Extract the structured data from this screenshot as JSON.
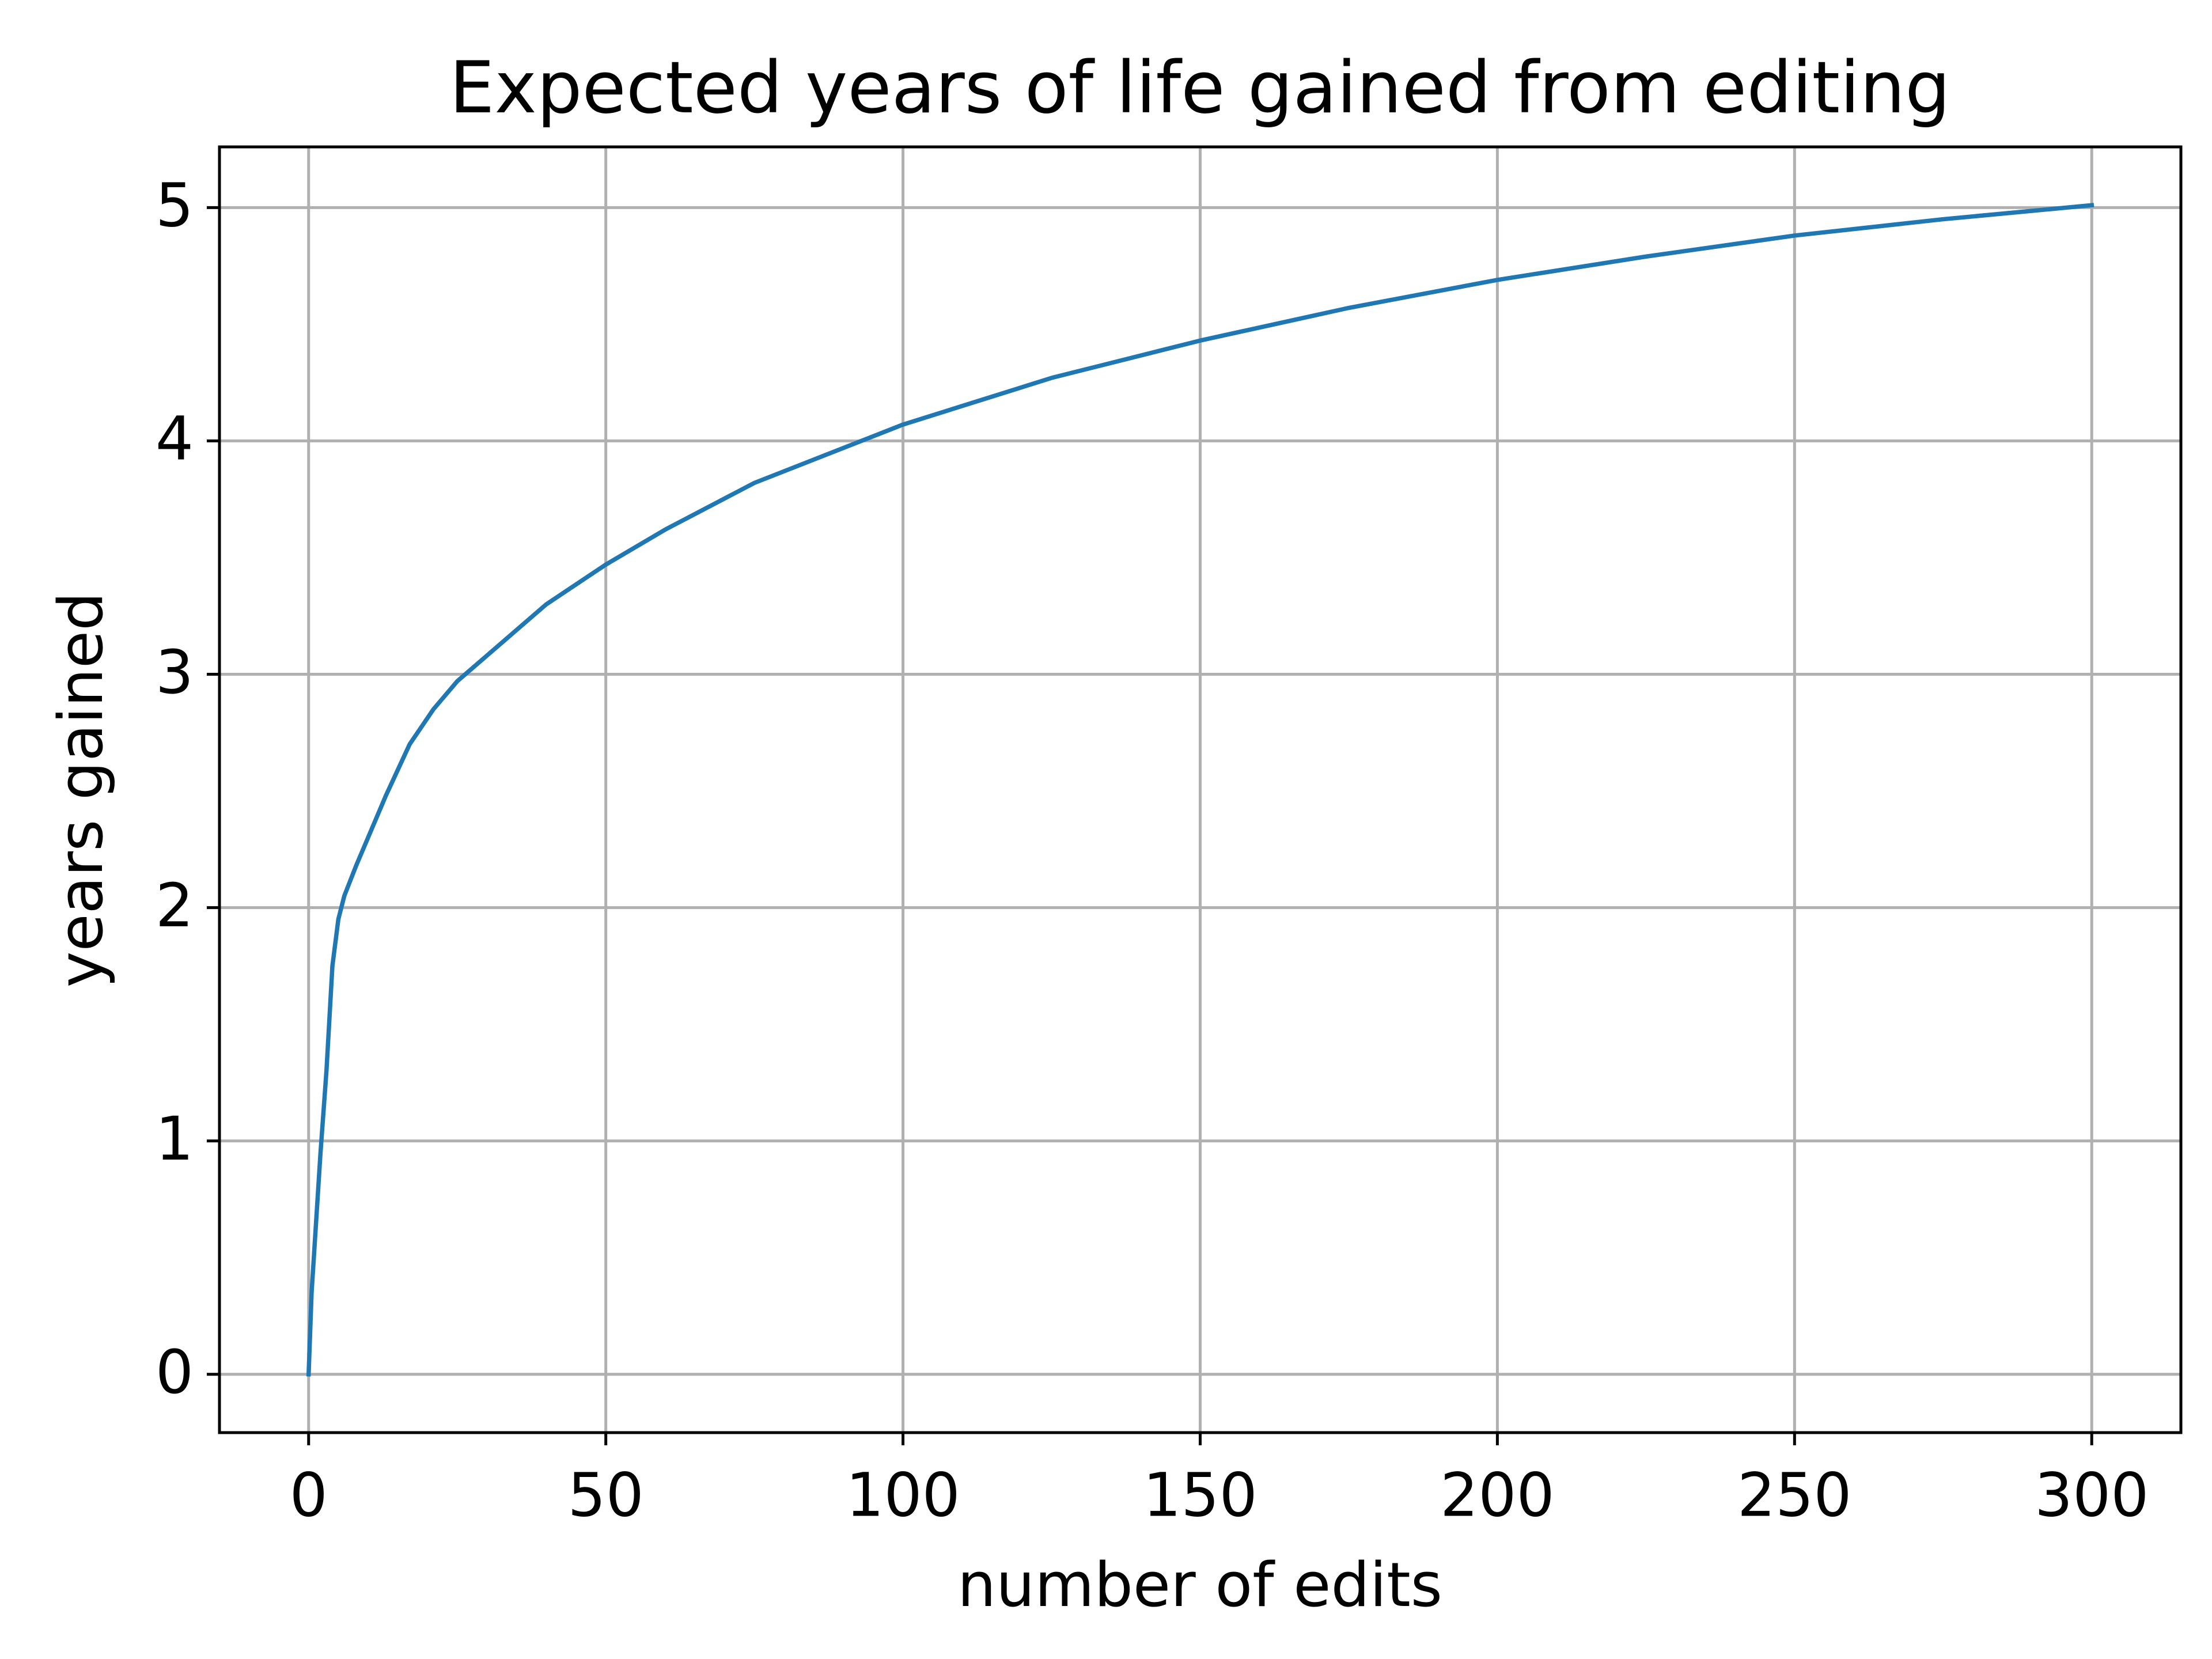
{
  "chart_data": {
    "type": "line",
    "title": "Expected years of life gained from editing",
    "x_label": "number of edits",
    "y_label": "years gained",
    "x": [
      0,
      0.5,
      1,
      2,
      3,
      4,
      5,
      6,
      8,
      10,
      13,
      17,
      21,
      25,
      30,
      40,
      50,
      60,
      75,
      100,
      125,
      150,
      175,
      200,
      225,
      250,
      275,
      300
    ],
    "series": [
      {
        "name": "years gained",
        "color": "#1f77b4",
        "values": [
          0,
          0.35,
          0.55,
          0.95,
          1.3,
          1.75,
          1.95,
          2.05,
          2.18,
          2.3,
          2.48,
          2.7,
          2.85,
          2.97,
          3.08,
          3.3,
          3.47,
          3.62,
          3.82,
          4.07,
          4.27,
          4.43,
          4.57,
          4.69,
          4.79,
          4.88,
          4.95,
          5.01
        ]
      }
    ],
    "xlim": [
      -15,
      315
    ],
    "xticks": [
      0,
      50,
      100,
      150,
      200,
      250,
      300
    ],
    "ylim": [
      -0.25,
      5.26
    ],
    "yticks": [
      0,
      1,
      2,
      3,
      4,
      5
    ],
    "grid": true
  }
}
